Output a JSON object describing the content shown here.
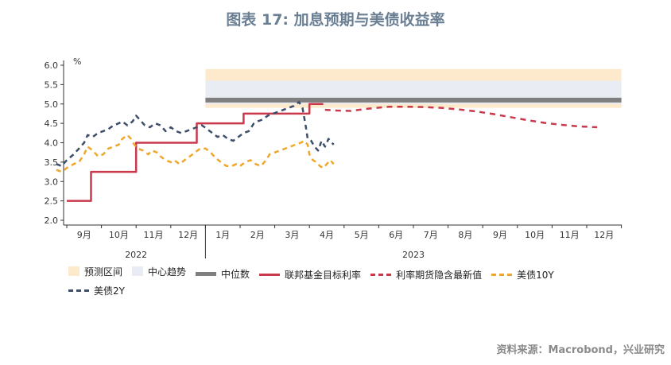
{
  "title": "图表 17: 加息预期与美债收益率",
  "source": "资料来源：Macrobond，兴业研究",
  "chart_data": {
    "type": "line",
    "y_unit": "%",
    "ylim": [
      2.0,
      6.0
    ],
    "y_ticks": [
      "6.0",
      "5.5",
      "5.0",
      "4.5",
      "4.0",
      "3.5",
      "3.0",
      "2.5",
      "2.0"
    ],
    "months": [
      "9月",
      "10月",
      "11月",
      "12月",
      "1月",
      "2月",
      "3月",
      "4月",
      "5月",
      "6月",
      "7月",
      "8月",
      "9月",
      "10月",
      "11月",
      "12月"
    ],
    "years": [
      {
        "label": "2022",
        "from": 0,
        "to": 4
      },
      {
        "label": "2023",
        "from": 4,
        "to": 16
      }
    ],
    "grid": false,
    "legend_position": "bottom",
    "colors": {
      "forecast_band": "#fde9cc",
      "center_band": "#e9edf3",
      "median": "#7f7f7f",
      "fed_rate": "#c9394b",
      "futures": "#c9394b",
      "y10": "#f0a62a",
      "y2": "#3d4e6b"
    },
    "forecast_band": {
      "x_start": 4.0,
      "x_end": 16.0,
      "low": 4.9,
      "high": 5.9
    },
    "center_band": {
      "x_start": 4.0,
      "x_end": 16.0,
      "low": 5.0,
      "high": 5.6
    },
    "median": {
      "x_start": 4.0,
      "x_end": 16.0,
      "value": 5.1
    },
    "series": [
      {
        "name": "联邦基金目标利率",
        "style": "solid",
        "color": "#c9394b",
        "step": true,
        "points": [
          [
            0,
            2.5
          ],
          [
            0.7,
            2.5
          ],
          [
            0.7,
            3.25
          ],
          [
            2.0,
            3.25
          ],
          [
            2.0,
            4.0
          ],
          [
            3.75,
            4.0
          ],
          [
            3.75,
            4.5
          ],
          [
            5.1,
            4.5
          ],
          [
            5.1,
            4.75
          ],
          [
            7.0,
            4.75
          ],
          [
            7.0,
            5.0
          ],
          [
            7.4,
            5.0
          ]
        ]
      },
      {
        "name": "利率期货隐含最新值",
        "style": "dashed",
        "color": "#c9394b",
        "points": [
          [
            7.45,
            4.85
          ],
          [
            7.8,
            4.83
          ],
          [
            8.2,
            4.82
          ],
          [
            8.7,
            4.88
          ],
          [
            9.3,
            4.93
          ],
          [
            9.8,
            4.93
          ],
          [
            10.3,
            4.92
          ],
          [
            10.8,
            4.9
          ],
          [
            11.3,
            4.86
          ],
          [
            11.8,
            4.81
          ],
          [
            12.3,
            4.74
          ],
          [
            12.8,
            4.66
          ],
          [
            13.3,
            4.58
          ],
          [
            13.8,
            4.51
          ],
          [
            14.3,
            4.46
          ],
          [
            14.8,
            4.42
          ],
          [
            15.3,
            4.4
          ]
        ]
      },
      {
        "name": "美债10Y",
        "style": "dashed",
        "color": "#f0a62a",
        "points": [
          [
            -0.3,
            3.3
          ],
          [
            -0.15,
            3.25
          ],
          [
            0,
            3.35
          ],
          [
            0.2,
            3.45
          ],
          [
            0.35,
            3.5
          ],
          [
            0.5,
            3.7
          ],
          [
            0.6,
            3.9
          ],
          [
            0.75,
            3.8
          ],
          [
            0.9,
            3.65
          ],
          [
            1.05,
            3.7
          ],
          [
            1.2,
            3.85
          ],
          [
            1.35,
            3.9
          ],
          [
            1.5,
            3.95
          ],
          [
            1.6,
            4.1
          ],
          [
            1.75,
            4.2
          ],
          [
            1.85,
            4.1
          ],
          [
            1.95,
            3.95
          ],
          [
            2.05,
            3.85
          ],
          [
            2.2,
            3.8
          ],
          [
            2.35,
            3.7
          ],
          [
            2.45,
            3.8
          ],
          [
            2.6,
            3.75
          ],
          [
            2.7,
            3.65
          ],
          [
            2.85,
            3.55
          ],
          [
            3.0,
            3.5
          ],
          [
            3.1,
            3.55
          ],
          [
            3.25,
            3.45
          ],
          [
            3.4,
            3.55
          ],
          [
            3.55,
            3.65
          ],
          [
            3.7,
            3.75
          ],
          [
            3.85,
            3.85
          ],
          [
            4.0,
            3.85
          ],
          [
            4.15,
            3.75
          ],
          [
            4.3,
            3.6
          ],
          [
            4.45,
            3.5
          ],
          [
            4.6,
            3.4
          ],
          [
            4.75,
            3.4
          ],
          [
            4.9,
            3.45
          ],
          [
            5.0,
            3.4
          ],
          [
            5.15,
            3.5
          ],
          [
            5.3,
            3.55
          ],
          [
            5.45,
            3.45
          ],
          [
            5.6,
            3.4
          ],
          [
            5.75,
            3.55
          ],
          [
            5.85,
            3.7
          ],
          [
            6.0,
            3.75
          ],
          [
            6.15,
            3.8
          ],
          [
            6.3,
            3.85
          ],
          [
            6.45,
            3.9
          ],
          [
            6.6,
            3.95
          ],
          [
            6.75,
            4.0
          ],
          [
            6.85,
            4.05
          ],
          [
            6.95,
            3.95
          ],
          [
            7.0,
            3.7
          ],
          [
            7.1,
            3.55
          ],
          [
            7.2,
            3.5
          ],
          [
            7.3,
            3.4
          ],
          [
            7.4,
            3.35
          ],
          [
            7.5,
            3.45
          ],
          [
            7.6,
            3.55
          ],
          [
            7.7,
            3.45
          ]
        ]
      },
      {
        "name": "美债2Y",
        "style": "dashed",
        "color": "#3d4e6b",
        "points": [
          [
            -0.3,
            3.45
          ],
          [
            -0.15,
            3.4
          ],
          [
            0,
            3.55
          ],
          [
            0.2,
            3.7
          ],
          [
            0.35,
            3.85
          ],
          [
            0.5,
            4.0
          ],
          [
            0.6,
            4.2
          ],
          [
            0.75,
            4.15
          ],
          [
            0.9,
            4.25
          ],
          [
            1.05,
            4.3
          ],
          [
            1.2,
            4.35
          ],
          [
            1.35,
            4.45
          ],
          [
            1.5,
            4.5
          ],
          [
            1.6,
            4.55
          ],
          [
            1.75,
            4.45
          ],
          [
            1.9,
            4.55
          ],
          [
            2.0,
            4.7
          ],
          [
            2.1,
            4.6
          ],
          [
            2.25,
            4.45
          ],
          [
            2.4,
            4.4
          ],
          [
            2.55,
            4.5
          ],
          [
            2.7,
            4.45
          ],
          [
            2.85,
            4.3
          ],
          [
            3.0,
            4.4
          ],
          [
            3.15,
            4.3
          ],
          [
            3.3,
            4.25
          ],
          [
            3.45,
            4.3
          ],
          [
            3.6,
            4.35
          ],
          [
            3.75,
            4.4
          ],
          [
            3.9,
            4.45
          ],
          [
            4.05,
            4.35
          ],
          [
            4.2,
            4.25
          ],
          [
            4.35,
            4.15
          ],
          [
            4.5,
            4.2
          ],
          [
            4.65,
            4.1
          ],
          [
            4.8,
            4.05
          ],
          [
            4.95,
            4.15
          ],
          [
            5.1,
            4.25
          ],
          [
            5.25,
            4.3
          ],
          [
            5.4,
            4.5
          ],
          [
            5.5,
            4.55
          ],
          [
            5.65,
            4.6
          ],
          [
            5.8,
            4.7
          ],
          [
            5.95,
            4.75
          ],
          [
            6.1,
            4.8
          ],
          [
            6.25,
            4.85
          ],
          [
            6.4,
            4.9
          ],
          [
            6.55,
            4.95
          ],
          [
            6.7,
            5.05
          ],
          [
            6.8,
            4.9
          ],
          [
            6.9,
            4.4
          ],
          [
            6.95,
            4.1
          ],
          [
            7.05,
            4.05
          ],
          [
            7.15,
            3.9
          ],
          [
            7.25,
            3.8
          ],
          [
            7.35,
            4.05
          ],
          [
            7.45,
            3.9
          ],
          [
            7.55,
            4.1
          ],
          [
            7.7,
            3.95
          ]
        ]
      }
    ],
    "legend": [
      {
        "key": "forecast_band",
        "label": "预测区间",
        "kind": "box",
        "color": "#fde9cc"
      },
      {
        "key": "center_band",
        "label": "中心趋势",
        "kind": "box",
        "color": "#e9edf3"
      },
      {
        "key": "median",
        "label": "中位数",
        "kind": "thick",
        "color": "#7f7f7f"
      },
      {
        "key": "fed_rate",
        "label": "联邦基金目标利率",
        "kind": "solid",
        "color": "#c9394b"
      },
      {
        "key": "futures",
        "label": "利率期货隐含最新值",
        "kind": "dashed",
        "color": "#c9394b"
      },
      {
        "key": "y10",
        "label": "美债10Y",
        "kind": "dashed",
        "color": "#f0a62a"
      },
      {
        "key": "y2",
        "label": "美债2Y",
        "kind": "dashed",
        "color": "#3d4e6b"
      }
    ]
  }
}
